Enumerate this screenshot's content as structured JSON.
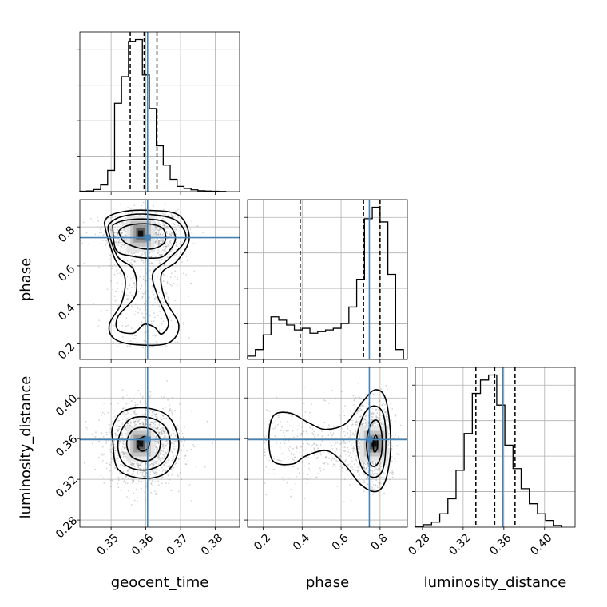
{
  "chart_data": {
    "type": "corner",
    "parameters": [
      "geocent_time",
      "phase",
      "luminosity_distance"
    ],
    "truths": {
      "geocent_time": 0.3605,
      "phase": 0.745,
      "luminosity_distance": 0.359
    },
    "truth_color": "#4682b4",
    "grid": true,
    "ranges": {
      "geocent_time": [
        0.341,
        0.387
      ],
      "phase": [
        0.12,
        0.94
      ],
      "luminosity_distance": [
        0.273,
        0.43
      ]
    },
    "ticks": {
      "geocent_time": {
        "values": [
          0.35,
          0.36,
          0.37,
          0.38
        ],
        "labels": [
          "0.35",
          "0.36",
          "0.37",
          "0.38"
        ]
      },
      "phase": {
        "values": [
          0.2,
          0.4,
          0.6,
          0.8
        ],
        "labels": [
          "0.2",
          "0.4",
          "0.6",
          "0.8"
        ]
      },
      "luminosity_distance": {
        "values": [
          0.28,
          0.32,
          0.36,
          0.4
        ],
        "labels": [
          "0.28",
          "0.32",
          "0.36",
          "0.40"
        ]
      }
    },
    "histograms": {
      "geocent_time": {
        "edges": [
          0.341,
          0.343,
          0.345,
          0.347,
          0.349,
          0.351,
          0.353,
          0.355,
          0.357,
          0.359,
          0.361,
          0.363,
          0.365,
          0.367,
          0.369,
          0.371,
          0.373,
          0.375,
          0.377,
          0.379,
          0.381,
          0.383
        ],
        "counts": [
          0.2,
          0.4,
          1.2,
          3.8,
          12,
          50,
          65,
          85,
          86,
          66,
          47,
          26,
          15,
          7,
          3,
          1.8,
          1,
          0.5,
          0.3,
          0.2,
          0.1
        ],
        "quantile_lines": [
          0.3555,
          0.3595,
          0.3632
        ]
      },
      "phase": {
        "edges": [
          0.12,
          0.16,
          0.2,
          0.24,
          0.28,
          0.32,
          0.36,
          0.4,
          0.44,
          0.48,
          0.52,
          0.56,
          0.6,
          0.64,
          0.68,
          0.72,
          0.76,
          0.8,
          0.84,
          0.88,
          0.92
        ],
        "counts": [
          2,
          6,
          15,
          26,
          24,
          21,
          18,
          19,
          16,
          17,
          18,
          19,
          22,
          32,
          49,
          86,
          93,
          84,
          52,
          6
        ],
        "quantile_lines": [
          0.39,
          0.715,
          0.8
        ]
      },
      "luminosity_distance": {
        "edges": [
          0.273,
          0.281,
          0.289,
          0.297,
          0.305,
          0.313,
          0.321,
          0.329,
          0.337,
          0.345,
          0.353,
          0.361,
          0.369,
          0.377,
          0.385,
          0.393,
          0.401,
          0.409,
          0.417
        ],
        "counts": [
          0.5,
          1.5,
          3,
          8,
          17,
          34,
          56,
          80,
          88,
          91,
          73,
          49,
          35,
          23,
          14,
          8,
          4,
          1
        ],
        "quantile_lines": [
          0.3325,
          0.351,
          0.371
        ]
      }
    },
    "contours": {
      "phase|geocent_time": [
        [
          [
            0.3525,
            0.76
          ],
          [
            0.354,
            0.72
          ],
          [
            0.3585,
            0.69
          ],
          [
            0.3625,
            0.69
          ],
          [
            0.3655,
            0.725
          ],
          [
            0.365,
            0.79
          ],
          [
            0.361,
            0.815
          ],
          [
            0.3555,
            0.81
          ],
          [
            0.3525,
            0.785
          ]
        ],
        [
          [
            0.3505,
            0.79
          ],
          [
            0.3515,
            0.68
          ],
          [
            0.356,
            0.65
          ],
          [
            0.3615,
            0.64
          ],
          [
            0.3655,
            0.655
          ],
          [
            0.3685,
            0.74
          ],
          [
            0.366,
            0.82
          ],
          [
            0.3605,
            0.84
          ],
          [
            0.3545,
            0.835
          ],
          [
            0.351,
            0.815
          ]
        ],
        [
          [
            0.3495,
            0.76
          ],
          [
            0.352,
            0.645
          ],
          [
            0.3565,
            0.58
          ],
          [
            0.357,
            0.45
          ],
          [
            0.352,
            0.34
          ],
          [
            0.352,
            0.27
          ],
          [
            0.3565,
            0.255
          ],
          [
            0.3595,
            0.3
          ],
          [
            0.3625,
            0.285
          ],
          [
            0.3645,
            0.25
          ],
          [
            0.3665,
            0.31
          ],
          [
            0.3635,
            0.44
          ],
          [
            0.362,
            0.56
          ],
          [
            0.3665,
            0.635
          ],
          [
            0.3715,
            0.74
          ],
          [
            0.3685,
            0.835
          ],
          [
            0.3605,
            0.865
          ],
          [
            0.3535,
            0.855
          ],
          [
            0.3495,
            0.815
          ]
        ],
        [
          [
            0.3485,
            0.78
          ],
          [
            0.351,
            0.64
          ],
          [
            0.354,
            0.54
          ],
          [
            0.353,
            0.41
          ],
          [
            0.3495,
            0.3
          ],
          [
            0.351,
            0.225
          ],
          [
            0.3575,
            0.195
          ],
          [
            0.3665,
            0.205
          ],
          [
            0.3695,
            0.295
          ],
          [
            0.3655,
            0.43
          ],
          [
            0.3645,
            0.56
          ],
          [
            0.369,
            0.625
          ],
          [
            0.3725,
            0.74
          ],
          [
            0.3695,
            0.86
          ],
          [
            0.3605,
            0.885
          ],
          [
            0.3525,
            0.875
          ],
          [
            0.3485,
            0.84
          ]
        ]
      ],
      "luminosity_distance|geocent_time": [
        [
          [
            0.3575,
            0.356
          ],
          [
            0.3585,
            0.348
          ],
          [
            0.3605,
            0.35
          ],
          [
            0.361,
            0.358
          ],
          [
            0.3595,
            0.362
          ]
        ],
        [
          [
            0.3545,
            0.356
          ],
          [
            0.356,
            0.342
          ],
          [
            0.3605,
            0.338
          ],
          [
            0.3635,
            0.346
          ],
          [
            0.364,
            0.36
          ],
          [
            0.361,
            0.37
          ],
          [
            0.3565,
            0.369
          ]
        ],
        [
          [
            0.352,
            0.357
          ],
          [
            0.3535,
            0.336
          ],
          [
            0.359,
            0.329
          ],
          [
            0.3645,
            0.335
          ],
          [
            0.367,
            0.352
          ],
          [
            0.3655,
            0.372
          ],
          [
            0.3605,
            0.381
          ],
          [
            0.355,
            0.378
          ]
        ],
        [
          [
            0.3505,
            0.357
          ],
          [
            0.352,
            0.33
          ],
          [
            0.359,
            0.321
          ],
          [
            0.366,
            0.327
          ],
          [
            0.3695,
            0.352
          ],
          [
            0.367,
            0.38
          ],
          [
            0.3605,
            0.39
          ],
          [
            0.3535,
            0.387
          ],
          [
            0.3505,
            0.372
          ]
        ]
      ],
      "luminosity_distance|phase": [
        [
          [
            0.765,
            0.355
          ],
          [
            0.77,
            0.347
          ],
          [
            0.785,
            0.35
          ],
          [
            0.786,
            0.36
          ],
          [
            0.775,
            0.363
          ]
        ],
        [
          [
            0.73,
            0.357
          ],
          [
            0.745,
            0.337
          ],
          [
            0.775,
            0.333
          ],
          [
            0.805,
            0.343
          ],
          [
            0.81,
            0.362
          ],
          [
            0.79,
            0.377
          ],
          [
            0.755,
            0.375
          ]
        ],
        [
          [
            0.68,
            0.358
          ],
          [
            0.705,
            0.332
          ],
          [
            0.765,
            0.322
          ],
          [
            0.815,
            0.33
          ],
          [
            0.83,
            0.358
          ],
          [
            0.815,
            0.385
          ],
          [
            0.765,
            0.392
          ],
          [
            0.715,
            0.383
          ]
        ],
        [
          [
            0.23,
            0.362
          ],
          [
            0.25,
            0.338
          ],
          [
            0.35,
            0.335
          ],
          [
            0.42,
            0.343
          ],
          [
            0.53,
            0.348
          ],
          [
            0.62,
            0.334
          ],
          [
            0.7,
            0.315
          ],
          [
            0.78,
            0.308
          ],
          [
            0.83,
            0.32
          ],
          [
            0.855,
            0.355
          ],
          [
            0.83,
            0.398
          ],
          [
            0.775,
            0.408
          ],
          [
            0.705,
            0.395
          ],
          [
            0.625,
            0.375
          ],
          [
            0.52,
            0.369
          ],
          [
            0.43,
            0.376
          ],
          [
            0.34,
            0.385
          ],
          [
            0.255,
            0.383
          ]
        ]
      ]
    }
  }
}
